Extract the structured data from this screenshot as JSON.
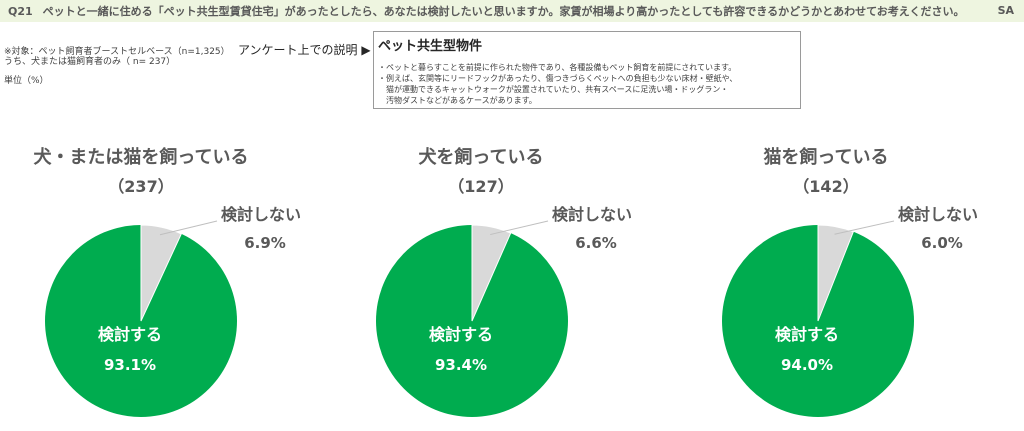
{
  "header": {
    "qnum": "Q21",
    "question": "ペットと一緒に住める「ペット共生型賃貸住宅」があったとしたら、あなたは検討したいと思いますか。家賃が相場より高かったとしても許容できるかどうかとあわせてお考えください。",
    "type": "SA"
  },
  "notes": {
    "target": "※対象：ペット飼育者ブーストセルベース（n=1,325）",
    "subset": "うち、犬または猫飼育者のみ（ n= 237）",
    "unit": "単位（%）"
  },
  "survey_label": "アンケート上での説明 ▶",
  "definition": {
    "title": "ペット共生型物件",
    "lines": [
      "・ペットと暮らすことを前提に作られた物件であり、各種設備もペット飼育を前提にされています。",
      "・例えば、玄関等にリードフックがあったり、傷つきづらくペットへの負担も少ない床材・壁紙や、",
      "　猫が運動できるキャットウォークが設置されていたり、共有スペースに足洗い場・ドッグラン・",
      "　汚物ダストなどがあるケースがあります。"
    ]
  },
  "colors": {
    "consider": "#00ac4f",
    "not_consider": "#d9d9d9",
    "text": "#595959"
  },
  "chart_data": [
    {
      "type": "pie",
      "title": "犬・または猫を飼っている",
      "subtitle": "（237）",
      "slices": [
        {
          "label": "検討しない",
          "value": 6.9,
          "value_label": "6.9%"
        },
        {
          "label": "検討する",
          "value": 93.1,
          "value_label": "93.1%"
        }
      ]
    },
    {
      "type": "pie",
      "title": "犬を飼っている",
      "subtitle": "（127）",
      "slices": [
        {
          "label": "検討しない",
          "value": 6.6,
          "value_label": "6.6%"
        },
        {
          "label": "検討する",
          "value": 93.4,
          "value_label": "93.4%"
        }
      ]
    },
    {
      "type": "pie",
      "title": "猫を飼っている",
      "subtitle": "（142）",
      "slices": [
        {
          "label": "検討しない",
          "value": 6.0,
          "value_label": "6.0%"
        },
        {
          "label": "検討する",
          "value": 94.0,
          "value_label": "94.0%"
        }
      ]
    }
  ]
}
